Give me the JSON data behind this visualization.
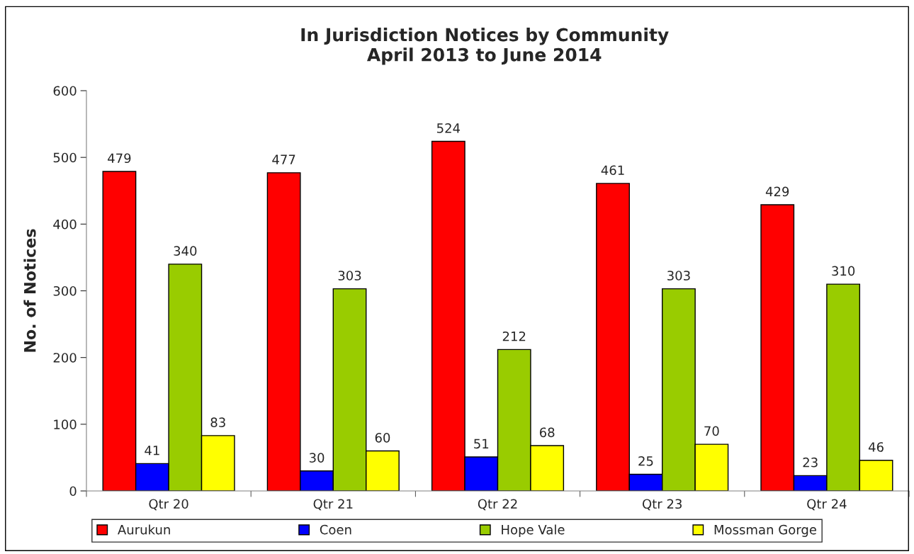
{
  "chart_data": {
    "type": "bar",
    "title": "In Jurisdiction Notices by Community\nApril 2013 to June 2014",
    "ylabel": "No. of Notices",
    "categories": [
      "Qtr 20",
      "Qtr 21",
      "Qtr 22",
      "Qtr 23",
      "Qtr 24"
    ],
    "series": [
      {
        "name": "Aurukun",
        "color": "#ff0000",
        "values": [
          479,
          477,
          524,
          461,
          429
        ]
      },
      {
        "name": "Coen",
        "color": "#0000ff",
        "values": [
          41,
          30,
          51,
          25,
          23
        ]
      },
      {
        "name": "Hope Vale",
        "color": "#99cc00",
        "values": [
          340,
          303,
          212,
          303,
          310
        ]
      },
      {
        "name": "Mossman Gorge",
        "color": "#ffff00",
        "values": [
          83,
          60,
          68,
          70,
          46
        ]
      }
    ],
    "ylim": [
      0,
      600
    ],
    "yticks": [
      0,
      100,
      200,
      300,
      400,
      500,
      600
    ],
    "grid": false,
    "legend": "bottom",
    "data_labels": true
  }
}
